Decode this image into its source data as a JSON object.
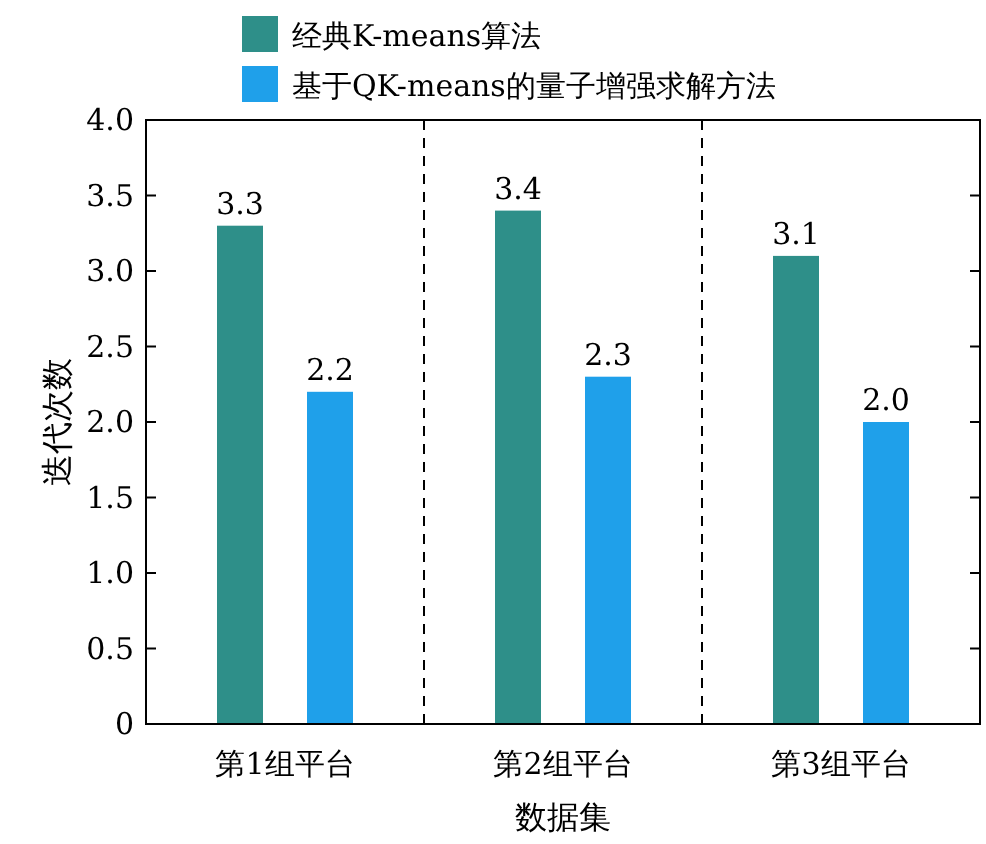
{
  "chart_data": {
    "type": "bar",
    "xlabel": "数据集",
    "ylabel": "迭代次数",
    "categories": [
      "第1组平台",
      "第2组平台",
      "第3组平台"
    ],
    "series": [
      {
        "name": "经典K-means算法",
        "color": "#2e8f89",
        "values": [
          3.3,
          3.4,
          3.1
        ],
        "value_labels": [
          "3.3",
          "3.4",
          "3.1"
        ]
      },
      {
        "name": "基于QK-means的量子增强求解方法",
        "color": "#1fa0ea",
        "values": [
          2.2,
          2.3,
          2.0
        ],
        "value_labels": [
          "2.2",
          "2.3",
          "2.0"
        ]
      }
    ],
    "ylim": [
      0,
      4
    ],
    "yticks": [
      0,
      0.5,
      {
        "value": 1,
        "label": "1.0"
      },
      1.5,
      {
        "value": 2,
        "label": "2.0"
      },
      2.5,
      {
        "value": 3,
        "label": "3.0"
      },
      3.5,
      {
        "value": 4,
        "label": "4.0"
      }
    ],
    "legend": "top",
    "grid": false
  }
}
